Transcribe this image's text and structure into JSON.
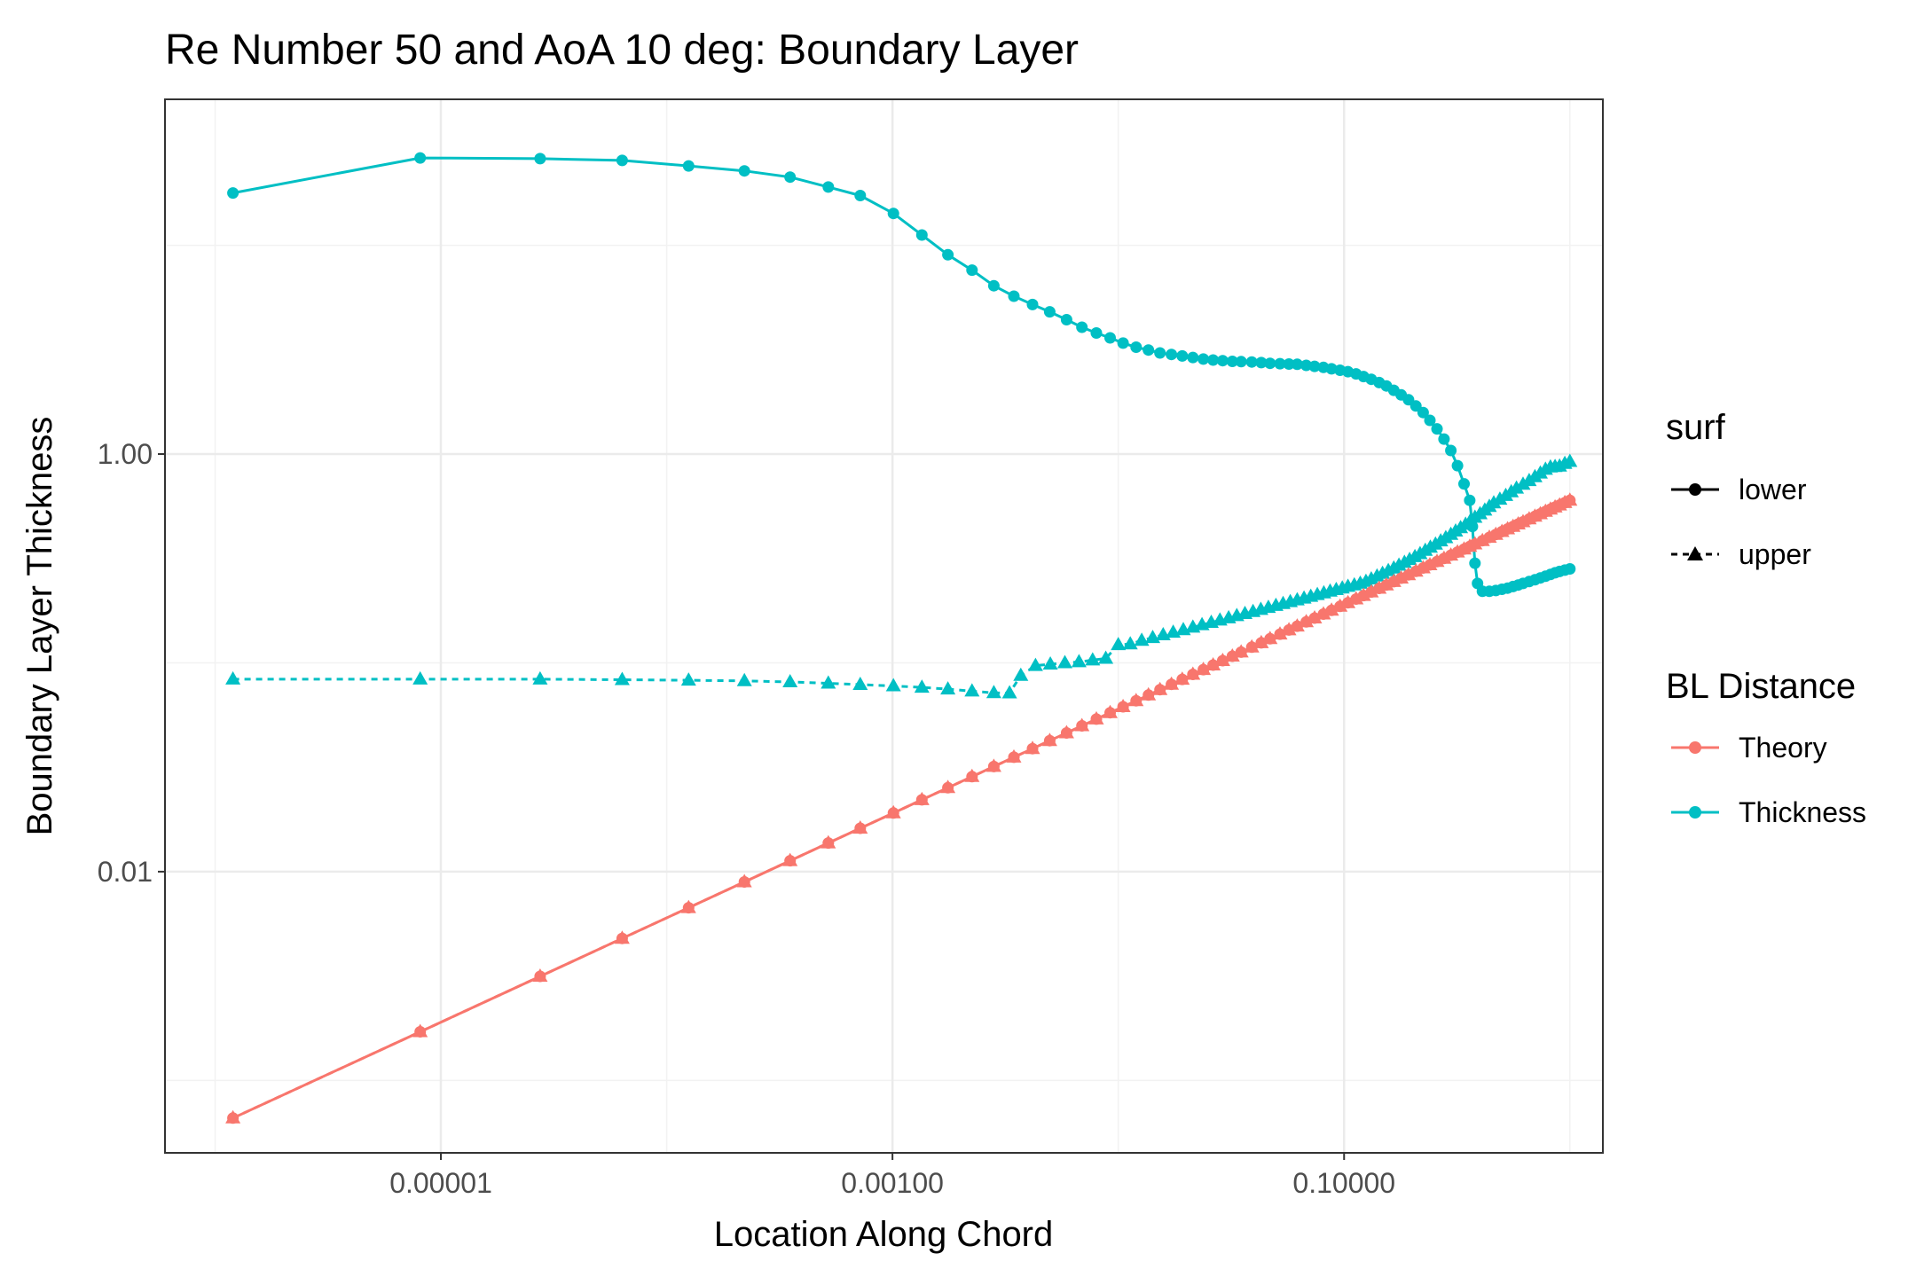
{
  "chart_data": {
    "type": "line",
    "title": "Re Number 50 and AoA 10 deg: Boundary Layer",
    "xlabel": "Location Along Chord",
    "ylabel": "Boundary Layer Thickness",
    "x_scale": "log10",
    "y_scale": "log10",
    "xlim": [
      6e-07,
      1.4
    ],
    "ylim": [
      0.00045,
      50
    ],
    "x_ticks": [
      {
        "value": 1e-05,
        "label": "0.00001"
      },
      {
        "value": 0.001,
        "label": "0.00100"
      },
      {
        "value": 0.1,
        "label": "0.10000"
      }
    ],
    "y_ticks": [
      {
        "value": 0.01,
        "label": "0.01"
      },
      {
        "value": 1,
        "label": "1.00"
      }
    ],
    "grid": true,
    "legend_position": "right",
    "legends": {
      "surf": {
        "title": "surf",
        "entries": [
          "lower",
          "upper"
        ]
      },
      "color": {
        "title": "BL Distance",
        "entries": [
          "Theory",
          "Thickness"
        ]
      }
    },
    "colors": {
      "Theory": "#F8766D",
      "Thickness": "#00BFC4"
    },
    "series": [
      {
        "bl_distance": "Thickness",
        "surf": "lower",
        "x": [
          1.2e-06,
          8.1e-06,
          2.75e-05,
          6.35e-05,
          0.000125,
          0.000221,
          0.000352,
          0.00052,
          0.00072,
          0.00101,
          0.00135,
          0.00176,
          0.00225,
          0.00281,
          0.00345,
          0.00417,
          0.00497,
          0.0059,
          0.0069,
          0.008,
          0.0092,
          0.0105,
          0.012,
          0.0136,
          0.0153,
          0.0172,
          0.0192,
          0.0214,
          0.0238,
          0.0263,
          0.029,
          0.032,
          0.035,
          0.039,
          0.043,
          0.047,
          0.052,
          0.057,
          0.062,
          0.068,
          0.074,
          0.081,
          0.088,
          0.096,
          0.104,
          0.113,
          0.122,
          0.132,
          0.143,
          0.154,
          0.166,
          0.179,
          0.193,
          0.208,
          0.224,
          0.24,
          0.258,
          0.277,
          0.297,
          0.318,
          0.34,
          0.36,
          0.37,
          0.38,
          0.39,
          0.41,
          0.44,
          0.47,
          0.5,
          0.53,
          0.56,
          0.59,
          0.62,
          0.66,
          0.7,
          0.74,
          0.78,
          0.82,
          0.86,
          0.9,
          0.95,
          1.0
        ],
        "y": [
          17.8,
          26.2,
          26.0,
          25.5,
          24.0,
          22.7,
          21.2,
          19.0,
          17.3,
          14.2,
          11.2,
          9.0,
          7.6,
          6.4,
          5.7,
          5.2,
          4.8,
          4.4,
          4.05,
          3.8,
          3.6,
          3.4,
          3.25,
          3.15,
          3.05,
          3.0,
          2.95,
          2.9,
          2.85,
          2.82,
          2.8,
          2.78,
          2.77,
          2.76,
          2.74,
          2.72,
          2.71,
          2.7,
          2.69,
          2.66,
          2.63,
          2.6,
          2.56,
          2.52,
          2.48,
          2.42,
          2.35,
          2.28,
          2.2,
          2.12,
          2.02,
          1.92,
          1.82,
          1.7,
          1.58,
          1.45,
          1.32,
          1.18,
          1.04,
          0.88,
          0.72,
          0.6,
          0.45,
          0.3,
          0.24,
          0.22,
          0.22,
          0.222,
          0.225,
          0.228,
          0.232,
          0.236,
          0.24,
          0.245,
          0.25,
          0.255,
          0.26,
          0.265,
          0.27,
          0.274,
          0.278,
          0.282
        ]
      },
      {
        "bl_distance": "Thickness",
        "surf": "upper",
        "x": [
          1.2e-06,
          8.1e-06,
          2.75e-05,
          6.35e-05,
          0.000125,
          0.000221,
          0.000352,
          0.00052,
          0.00072,
          0.00101,
          0.00135,
          0.00176,
          0.00225,
          0.00281,
          0.0033,
          0.0037,
          0.0043,
          0.005,
          0.0058,
          0.0067,
          0.0077,
          0.0088,
          0.01,
          0.0113,
          0.0127,
          0.0142,
          0.0158,
          0.0175,
          0.0194,
          0.0214,
          0.0235,
          0.0258,
          0.0282,
          0.0308,
          0.0335,
          0.0364,
          0.0395,
          0.0428,
          0.0462,
          0.0499,
          0.0537,
          0.0578,
          0.062,
          0.0665,
          0.0712,
          0.0761,
          0.0813,
          0.0867,
          0.0923,
          0.0982,
          0.104,
          0.111,
          0.118,
          0.125,
          0.132,
          0.14,
          0.148,
          0.157,
          0.166,
          0.175,
          0.185,
          0.195,
          0.206,
          0.217,
          0.229,
          0.241,
          0.254,
          0.268,
          0.282,
          0.297,
          0.312,
          0.328,
          0.345,
          0.362,
          0.38,
          0.4,
          0.42,
          0.44,
          0.46,
          0.49,
          0.52,
          0.55,
          0.58,
          0.62,
          0.66,
          0.7,
          0.74,
          0.78,
          0.82,
          0.86,
          0.9,
          0.95,
          1.0
        ],
        "y": [
          0.0835,
          0.0835,
          0.0835,
          0.083,
          0.0825,
          0.082,
          0.081,
          0.0798,
          0.0787,
          0.0775,
          0.0763,
          0.0748,
          0.0732,
          0.0718,
          0.0717,
          0.087,
          0.097,
          0.0985,
          0.1,
          0.101,
          0.103,
          0.105,
          0.122,
          0.123,
          0.128,
          0.132,
          0.136,
          0.14,
          0.144,
          0.148,
          0.152,
          0.156,
          0.16,
          0.164,
          0.168,
          0.172,
          0.176,
          0.18,
          0.184,
          0.188,
          0.192,
          0.196,
          0.2,
          0.204,
          0.208,
          0.212,
          0.216,
          0.22,
          0.224,
          0.228,
          0.232,
          0.236,
          0.24,
          0.245,
          0.252,
          0.26,
          0.268,
          0.276,
          0.284,
          0.293,
          0.302,
          0.312,
          0.322,
          0.333,
          0.345,
          0.357,
          0.37,
          0.383,
          0.397,
          0.412,
          0.427,
          0.443,
          0.46,
          0.478,
          0.497,
          0.517,
          0.538,
          0.56,
          0.583,
          0.607,
          0.632,
          0.658,
          0.686,
          0.715,
          0.745,
          0.777,
          0.81,
          0.844,
          0.865,
          0.87,
          0.875,
          0.9,
          0.92
        ]
      },
      {
        "bl_distance": "Theory",
        "surf": "lower",
        "x": [
          1.2e-06,
          8.1e-06,
          2.75e-05,
          6.35e-05,
          0.000125,
          0.000221,
          0.000352,
          0.00052,
          0.00072,
          0.00101,
          0.00135,
          0.00176,
          0.00225,
          0.00281,
          0.00345,
          0.00417,
          0.00497,
          0.0059,
          0.0069,
          0.008,
          0.0092,
          0.0105,
          0.012,
          0.0136,
          0.0153,
          0.0172,
          0.0192,
          0.0214,
          0.0238,
          0.0263,
          0.029,
          0.032,
          0.035,
          0.039,
          0.043,
          0.047,
          0.052,
          0.057,
          0.062,
          0.068,
          0.074,
          0.081,
          0.088,
          0.096,
          0.104,
          0.113,
          0.122,
          0.132,
          0.143,
          0.154,
          0.166,
          0.179,
          0.193,
          0.208,
          0.224,
          0.24,
          0.258,
          0.277,
          0.297,
          0.318,
          0.34,
          0.36,
          0.38,
          0.41,
          0.44,
          0.47,
          0.5,
          0.53,
          0.56,
          0.59,
          0.62,
          0.66,
          0.7,
          0.74,
          0.78,
          0.82,
          0.86,
          0.9,
          0.95,
          1.0
        ],
        "y": [
          0.00066,
          0.00171,
          0.00315,
          0.00479,
          0.00672,
          0.00893,
          0.01128,
          0.01371,
          0.01613,
          0.01909,
          0.02208,
          0.02522,
          0.02851,
          0.03187,
          0.03531,
          0.03882,
          0.04238,
          0.04618,
          0.04994,
          0.05378,
          0.05768,
          0.06162,
          0.06586,
          0.07011,
          0.07437,
          0.07886,
          0.08335,
          0.08799,
          0.0928,
          0.09755,
          0.10245,
          0.10761,
          0.11254,
          0.11884,
          0.12472,
          0.13043,
          0.13717,
          0.14362,
          0.14984,
          0.15699,
          0.16378,
          0.17125,
          0.17843,
          0.18632,
          0.19393,
          0.2021,
          0.21001,
          0.21837,
          0.22733,
          0.23589,
          0.24488,
          0.25431,
          0.26411,
          0.27419,
          0.28454,
          0.2945,
          0.30529,
          0.31634,
          0.32763,
          0.33903,
          0.35051,
          0.36064,
          0.37052,
          0.38482,
          0.3987,
          0.41207,
          0.425,
          0.43773,
          0.44994,
          0.46182,
          0.47342,
          0.48846,
          0.50301,
          0.51711,
          0.53079,
          0.54405,
          0.55697,
          0.56955,
          0.58487,
          0.6
        ]
      },
      {
        "bl_distance": "Theory",
        "surf": "upper",
        "x": [
          1.2e-06,
          8.1e-06,
          2.75e-05,
          6.35e-05,
          0.000125,
          0.000221,
          0.000352,
          0.00052,
          0.00072,
          0.00101,
          0.00135,
          0.00176,
          0.00225,
          0.00281,
          0.00345,
          0.00417,
          0.00497,
          0.0059,
          0.0069,
          0.008,
          0.0092,
          0.0105,
          0.012,
          0.0136,
          0.0153,
          0.0172,
          0.0192,
          0.0214,
          0.0238,
          0.0263,
          0.029,
          0.032,
          0.035,
          0.039,
          0.043,
          0.047,
          0.052,
          0.057,
          0.062,
          0.068,
          0.074,
          0.081,
          0.088,
          0.096,
          0.104,
          0.113,
          0.122,
          0.132,
          0.143,
          0.154,
          0.166,
          0.179,
          0.193,
          0.208,
          0.224,
          0.24,
          0.258,
          0.277,
          0.297,
          0.318,
          0.34,
          0.36,
          0.38,
          0.41,
          0.44,
          0.47,
          0.5,
          0.53,
          0.56,
          0.59,
          0.62,
          0.66,
          0.7,
          0.74,
          0.78,
          0.82,
          0.86,
          0.9,
          0.95,
          1.0
        ],
        "y": [
          0.00066,
          0.00171,
          0.00315,
          0.00479,
          0.00672,
          0.00893,
          0.01128,
          0.01371,
          0.01613,
          0.01909,
          0.02208,
          0.02522,
          0.02851,
          0.03187,
          0.03531,
          0.03882,
          0.04238,
          0.04618,
          0.04994,
          0.05378,
          0.05768,
          0.06162,
          0.06586,
          0.07011,
          0.07437,
          0.07886,
          0.08335,
          0.08799,
          0.0928,
          0.09755,
          0.10245,
          0.10761,
          0.11254,
          0.11884,
          0.12472,
          0.13043,
          0.13717,
          0.14362,
          0.14984,
          0.15699,
          0.16378,
          0.17125,
          0.17843,
          0.18632,
          0.19393,
          0.2021,
          0.21001,
          0.21837,
          0.22733,
          0.23589,
          0.24488,
          0.25431,
          0.26411,
          0.27419,
          0.28454,
          0.2945,
          0.30529,
          0.31634,
          0.32763,
          0.33903,
          0.35051,
          0.36064,
          0.37052,
          0.38482,
          0.3987,
          0.41207,
          0.425,
          0.43773,
          0.44994,
          0.46182,
          0.47342,
          0.48846,
          0.50301,
          0.51711,
          0.53079,
          0.54405,
          0.55697,
          0.56955,
          0.58487,
          0.6
        ]
      }
    ]
  }
}
